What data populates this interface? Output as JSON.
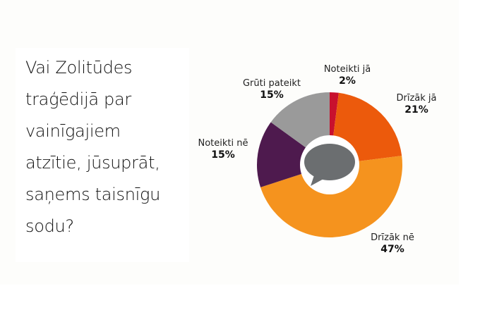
{
  "question": {
    "lines": [
      "Vai Zolitūdes",
      "traģēdijā par",
      "vainīgajiem",
      "atzītie, jūsuprāt,",
      "saņems taisnīgu",
      "sodu?"
    ]
  },
  "chart_data": {
    "type": "pie",
    "variant": "donut",
    "title": "Vai Zolitūdes traģēdijā par vainīgajiem atzītie, jūsuprāt, saņems taisnīgu sodu?",
    "categories": [
      "Noteikti jā",
      "Drīzāk jā",
      "Drīzāk nē",
      "Noteikti nē",
      "Grūti pateikt"
    ],
    "values": [
      2,
      21,
      47,
      15,
      15
    ],
    "unit": "%",
    "colors": [
      "#c8102e",
      "#ec5a0c",
      "#f5931e",
      "#4e1a4e",
      "#9a9a9a"
    ],
    "start_angle_deg": 0,
    "direction": "clockwise",
    "center_icon": "speech-bubble-icon",
    "center_icon_color": "#6b6e70",
    "labels": [
      {
        "name": "Noteikti jā",
        "pct": "2%"
      },
      {
        "name": "Drīzāk jā",
        "pct": "21%"
      },
      {
        "name": "Drīzāk nē",
        "pct": "47%"
      },
      {
        "name": "Noteikti nē",
        "pct": "15%"
      },
      {
        "name": "Grūti pateikt",
        "pct": "15%"
      }
    ]
  }
}
